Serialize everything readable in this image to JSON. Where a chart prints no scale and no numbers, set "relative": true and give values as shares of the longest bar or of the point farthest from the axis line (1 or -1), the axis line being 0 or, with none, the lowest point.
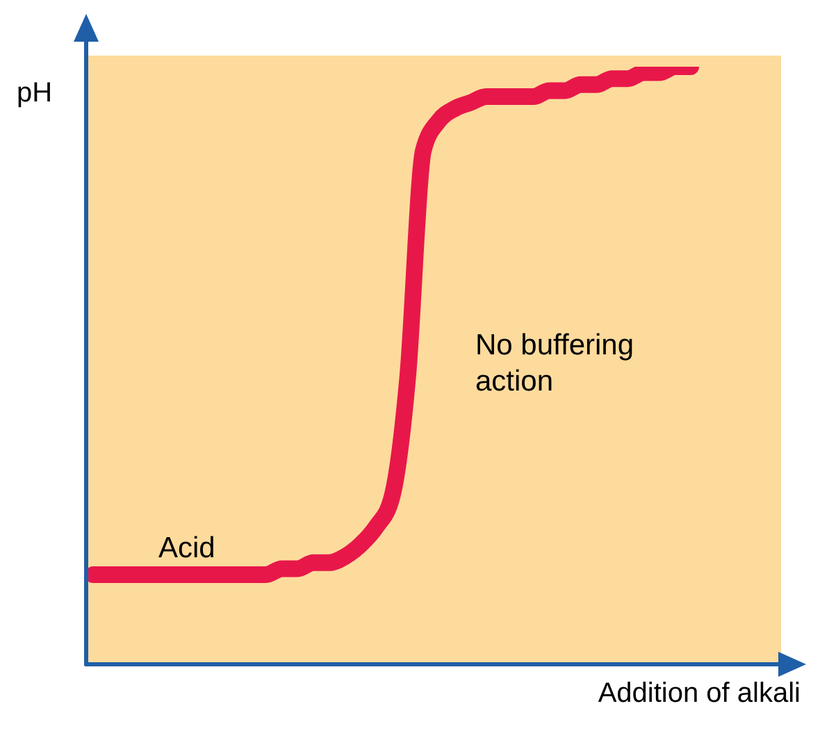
{
  "chart_data": {
    "type": "line",
    "relative": true,
    "xlabel": "Addition of alkali",
    "ylabel": "pH",
    "categories": [
      null,
      null,
      null,
      null,
      null,
      null,
      null,
      null,
      null,
      null,
      null,
      null,
      null,
      null,
      null,
      null,
      null,
      null,
      null,
      null,
      null,
      null,
      null,
      null,
      null,
      null,
      null,
      null,
      null,
      null,
      null,
      null,
      null,
      null,
      null,
      null,
      null,
      null,
      null
    ],
    "series": [
      {
        "color": "#e8174a",
        "values": [
          0.15,
          0.15,
          0.15,
          0.15,
          0.15,
          0.15,
          0.15,
          0.15,
          0.15,
          0.15,
          0.15,
          0.15,
          0.16,
          0.16,
          0.17,
          0.17,
          0.18,
          0.2,
          0.23,
          0.28,
          0.48,
          0.86,
          0.91,
          0.93,
          0.94,
          0.95,
          0.95,
          0.95,
          0.95,
          0.96,
          0.96,
          0.97,
          0.97,
          0.98,
          0.98,
          0.99,
          0.99,
          1.0,
          1
        ]
      }
    ],
    "annotations": [
      "Acid",
      "No buffering action"
    ],
    "marker": "none",
    "line_style": "solid"
  }
}
